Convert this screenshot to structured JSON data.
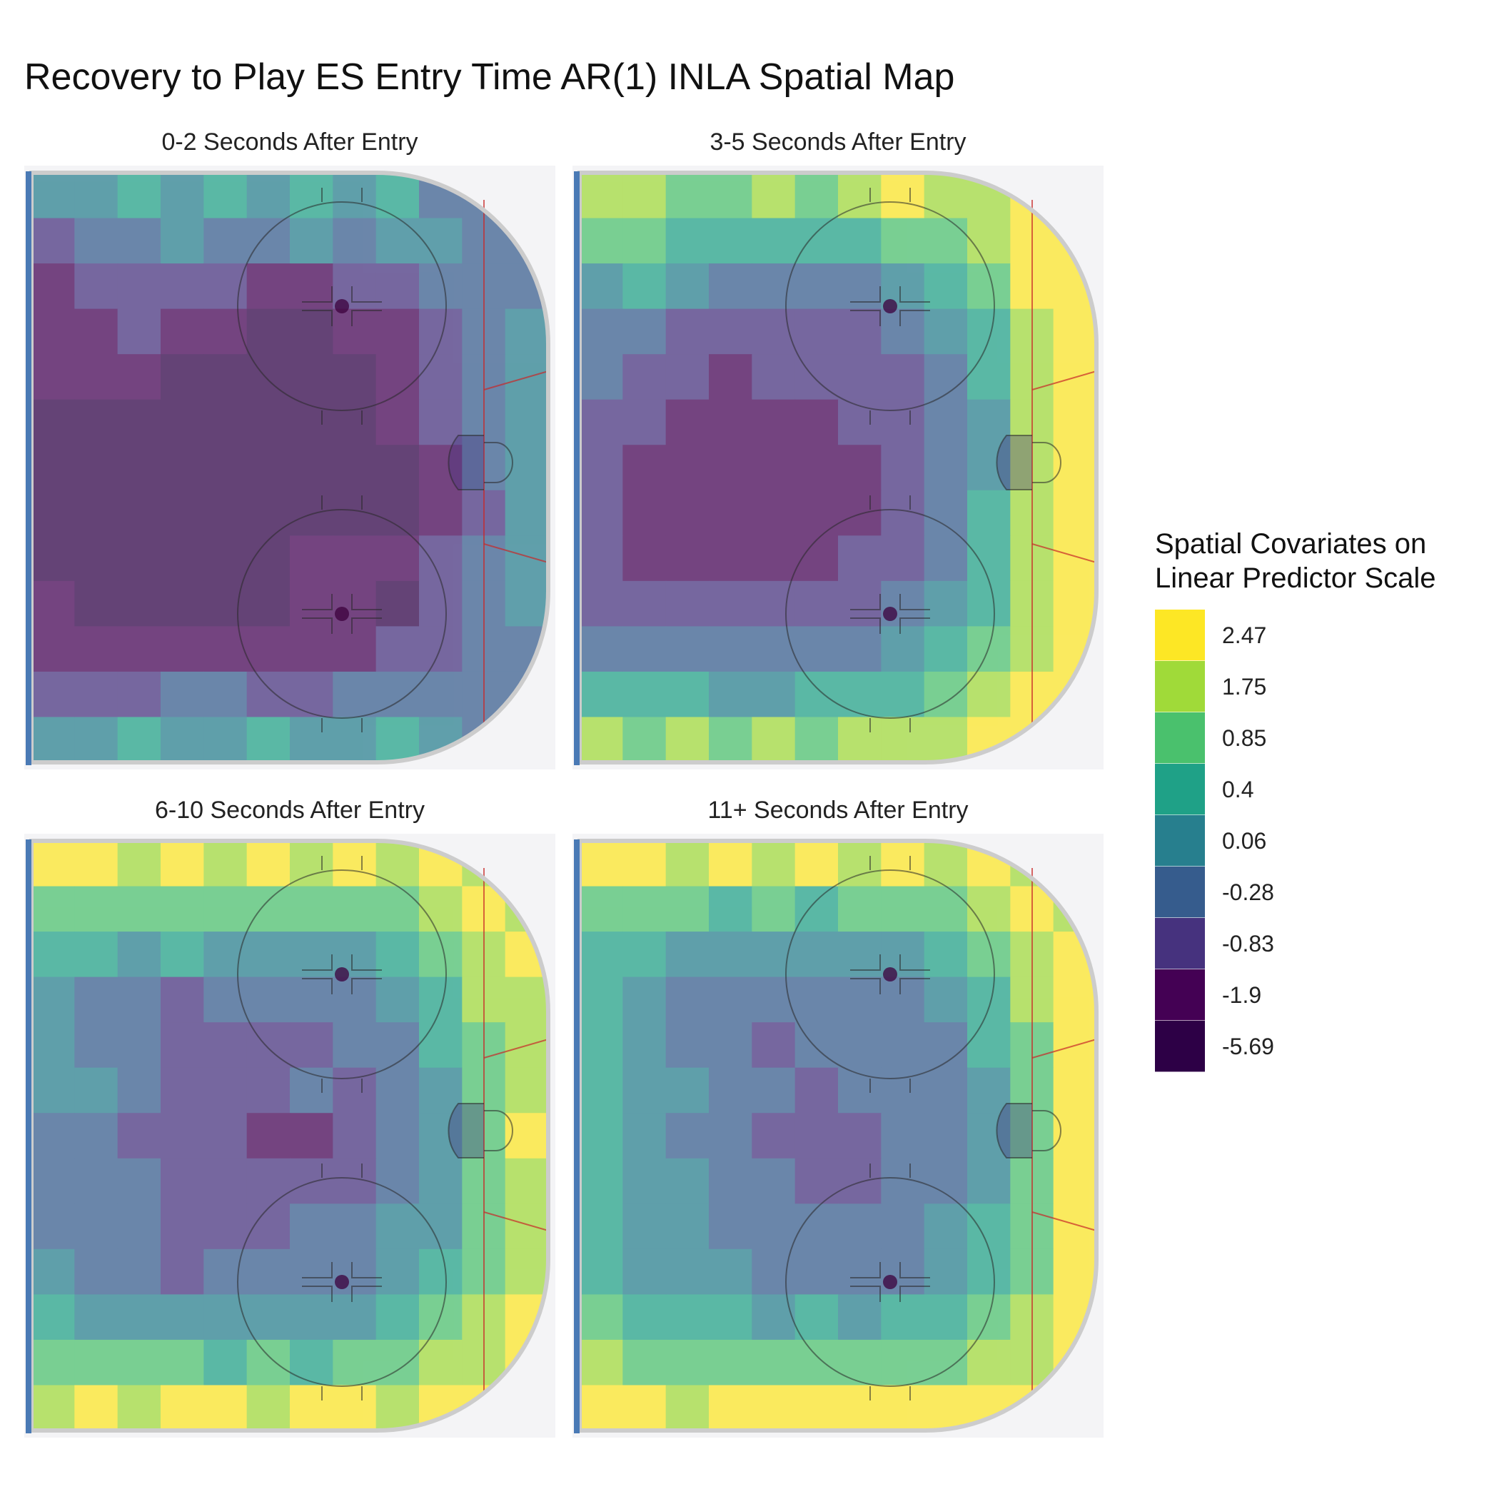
{
  "chart_title": "Recovery to Play ES Entry Time AR(1) INLA Spatial Map",
  "legend": {
    "title_line1": "Spatial Covariates on",
    "title_line2": "Linear Predictor Scale",
    "items": [
      {
        "label": "2.47",
        "color": "#FDE725"
      },
      {
        "label": "1.75",
        "color": "#A0DA39"
      },
      {
        "label": "0.85",
        "color": "#4AC16D"
      },
      {
        "label": "0.4",
        "color": "#1FA187"
      },
      {
        "label": "0.06",
        "color": "#277F8E"
      },
      {
        "label": "-0.28",
        "color": "#365C8D"
      },
      {
        "label": "-0.83",
        "color": "#46327E"
      },
      {
        "label": "-1.9",
        "color": "#440154"
      },
      {
        "label": "-5.69",
        "color": "#2D0046"
      }
    ]
  },
  "chart_data": [
    {
      "type": "heatmap",
      "title": "0-2 Seconds After Entry",
      "grid": [
        [
          4,
          4,
          5,
          4,
          5,
          4,
          5,
          4,
          5,
          3,
          3,
          2
        ],
        [
          2,
          3,
          3,
          4,
          3,
          3,
          4,
          3,
          4,
          4,
          3,
          3
        ],
        [
          1,
          2,
          2,
          2,
          2,
          1,
          1,
          2,
          2,
          3,
          3,
          3
        ],
        [
          1,
          1,
          2,
          1,
          1,
          0,
          0,
          1,
          1,
          2,
          3,
          4
        ],
        [
          1,
          1,
          1,
          0,
          0,
          0,
          0,
          0,
          1,
          2,
          3,
          4
        ],
        [
          0,
          0,
          0,
          0,
          0,
          0,
          0,
          0,
          1,
          2,
          3,
          4
        ],
        [
          0,
          0,
          0,
          0,
          0,
          0,
          0,
          0,
          0,
          1,
          3,
          4
        ],
        [
          0,
          0,
          0,
          0,
          0,
          0,
          0,
          0,
          0,
          1,
          2,
          4
        ],
        [
          0,
          0,
          0,
          0,
          0,
          0,
          1,
          1,
          1,
          2,
          3,
          4
        ],
        [
          1,
          0,
          0,
          0,
          0,
          0,
          1,
          1,
          0,
          2,
          3,
          4
        ],
        [
          1,
          1,
          1,
          1,
          1,
          1,
          1,
          1,
          2,
          2,
          3,
          3
        ],
        [
          2,
          2,
          2,
          3,
          3,
          2,
          2,
          3,
          3,
          3,
          3,
          3
        ],
        [
          4,
          4,
          5,
          4,
          4,
          5,
          4,
          4,
          5,
          4,
          3,
          2
        ]
      ]
    },
    {
      "type": "heatmap",
      "title": "3-5 Seconds After Entry",
      "grid": [
        [
          7,
          7,
          6,
          6,
          7,
          6,
          7,
          8,
          7,
          7,
          8,
          8
        ],
        [
          6,
          6,
          5,
          5,
          5,
          5,
          5,
          6,
          6,
          7,
          8,
          8
        ],
        [
          4,
          5,
          4,
          3,
          3,
          3,
          3,
          4,
          5,
          6,
          8,
          8
        ],
        [
          3,
          3,
          2,
          2,
          2,
          2,
          2,
          3,
          4,
          5,
          7,
          8
        ],
        [
          3,
          2,
          2,
          1,
          2,
          2,
          2,
          2,
          3,
          5,
          7,
          8
        ],
        [
          2,
          2,
          1,
          1,
          1,
          1,
          2,
          2,
          3,
          4,
          7,
          8
        ],
        [
          2,
          1,
          1,
          1,
          1,
          1,
          1,
          2,
          3,
          4,
          7,
          8
        ],
        [
          2,
          1,
          1,
          1,
          1,
          1,
          1,
          2,
          3,
          5,
          7,
          8
        ],
        [
          2,
          1,
          1,
          1,
          1,
          1,
          2,
          2,
          3,
          5,
          7,
          8
        ],
        [
          2,
          2,
          2,
          2,
          2,
          2,
          2,
          3,
          4,
          5,
          7,
          8
        ],
        [
          3,
          3,
          3,
          3,
          3,
          3,
          3,
          4,
          5,
          6,
          7,
          8
        ],
        [
          5,
          5,
          5,
          4,
          4,
          5,
          5,
          5,
          6,
          7,
          8,
          8
        ],
        [
          7,
          6,
          7,
          6,
          7,
          6,
          7,
          7,
          7,
          8,
          8,
          8
        ]
      ]
    },
    {
      "type": "heatmap",
      "title": "6-10 Seconds After Entry",
      "grid": [
        [
          8,
          8,
          7,
          8,
          7,
          8,
          7,
          8,
          7,
          8,
          7,
          7
        ],
        [
          6,
          6,
          6,
          6,
          6,
          6,
          6,
          6,
          6,
          7,
          8,
          7
        ],
        [
          5,
          5,
          4,
          5,
          4,
          4,
          4,
          4,
          5,
          6,
          7,
          8
        ],
        [
          4,
          3,
          3,
          2,
          3,
          3,
          3,
          3,
          4,
          5,
          7,
          7
        ],
        [
          4,
          3,
          3,
          2,
          2,
          2,
          2,
          3,
          3,
          5,
          6,
          7
        ],
        [
          4,
          4,
          3,
          2,
          2,
          2,
          3,
          2,
          3,
          4,
          6,
          7
        ],
        [
          3,
          3,
          2,
          2,
          2,
          1,
          1,
          2,
          3,
          4,
          6,
          8
        ],
        [
          3,
          3,
          3,
          2,
          2,
          2,
          2,
          2,
          3,
          4,
          6,
          7
        ],
        [
          3,
          3,
          3,
          2,
          2,
          2,
          3,
          3,
          4,
          4,
          6,
          7
        ],
        [
          4,
          3,
          3,
          2,
          3,
          3,
          3,
          3,
          4,
          5,
          6,
          7
        ],
        [
          5,
          4,
          4,
          4,
          4,
          4,
          4,
          4,
          5,
          6,
          7,
          8
        ],
        [
          6,
          6,
          6,
          6,
          5,
          6,
          5,
          6,
          6,
          7,
          7,
          8
        ],
        [
          7,
          8,
          7,
          8,
          8,
          7,
          8,
          8,
          7,
          8,
          8,
          7
        ]
      ]
    },
    {
      "type": "heatmap",
      "title": "11+ Seconds After Entry",
      "grid": [
        [
          8,
          8,
          7,
          8,
          7,
          8,
          7,
          8,
          7,
          8,
          7,
          6
        ],
        [
          6,
          6,
          6,
          5,
          6,
          5,
          6,
          6,
          6,
          7,
          8,
          7
        ],
        [
          5,
          5,
          4,
          4,
          4,
          4,
          4,
          4,
          5,
          6,
          7,
          8
        ],
        [
          5,
          4,
          3,
          3,
          3,
          3,
          3,
          3,
          4,
          5,
          7,
          8
        ],
        [
          5,
          4,
          3,
          3,
          2,
          3,
          3,
          3,
          3,
          5,
          6,
          8
        ],
        [
          5,
          4,
          4,
          3,
          3,
          2,
          3,
          3,
          3,
          4,
          6,
          8
        ],
        [
          5,
          4,
          3,
          3,
          2,
          2,
          2,
          3,
          3,
          4,
          6,
          8
        ],
        [
          5,
          4,
          4,
          3,
          3,
          2,
          2,
          3,
          3,
          4,
          6,
          8
        ],
        [
          5,
          4,
          4,
          3,
          3,
          3,
          3,
          3,
          4,
          5,
          6,
          8
        ],
        [
          5,
          4,
          4,
          4,
          3,
          3,
          3,
          3,
          4,
          5,
          6,
          8
        ],
        [
          6,
          5,
          5,
          5,
          4,
          5,
          4,
          5,
          5,
          6,
          7,
          8
        ],
        [
          7,
          6,
          6,
          6,
          6,
          6,
          6,
          6,
          6,
          7,
          7,
          8
        ],
        [
          8,
          8,
          7,
          8,
          8,
          8,
          8,
          8,
          8,
          8,
          8,
          7
        ]
      ]
    }
  ]
}
